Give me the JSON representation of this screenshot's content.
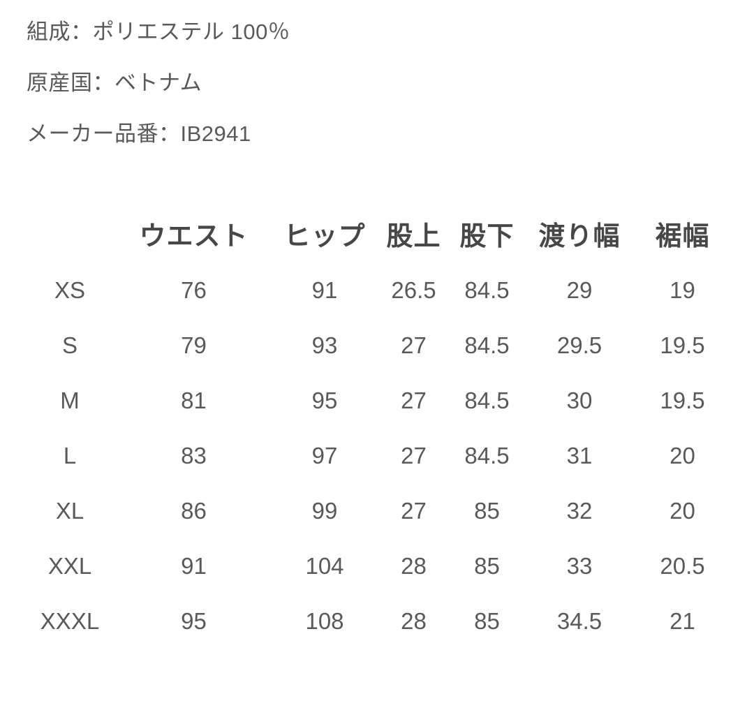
{
  "page": {
    "background": "#ffffff",
    "body_text_color": "#595959",
    "header_text_color": "#474747"
  },
  "product_info": {
    "composition": "組成：ポリエステル 100％",
    "country_of_origin": "原産国：ベトナム",
    "manufacturer_part_number": "メーカー品番：IB2941"
  },
  "size_table": {
    "column_headers": [
      "ウエスト",
      "ヒップ",
      "股上",
      "股下",
      "渡り幅",
      "裾幅"
    ],
    "rows": [
      {
        "size": "XS",
        "waist": "76",
        "hip": "91",
        "rise": "26.5",
        "inseam": "84.5",
        "thigh_width": "29",
        "hem_width": "19"
      },
      {
        "size": "S",
        "waist": "79",
        "hip": "93",
        "rise": "27",
        "inseam": "84.5",
        "thigh_width": "29.5",
        "hem_width": "19.5"
      },
      {
        "size": "M",
        "waist": "81",
        "hip": "95",
        "rise": "27",
        "inseam": "84.5",
        "thigh_width": "30",
        "hem_width": "19.5"
      },
      {
        "size": "L",
        "waist": "83",
        "hip": "97",
        "rise": "27",
        "inseam": "84.5",
        "thigh_width": "31",
        "hem_width": "20"
      },
      {
        "size": "XL",
        "waist": "86",
        "hip": "99",
        "rise": "27",
        "inseam": "85",
        "thigh_width": "32",
        "hem_width": "20"
      },
      {
        "size": "XXL",
        "waist": "91",
        "hip": "104",
        "rise": "28",
        "inseam": "85",
        "thigh_width": "33",
        "hem_width": "20.5"
      },
      {
        "size": "XXXL",
        "waist": "95",
        "hip": "108",
        "rise": "28",
        "inseam": "85",
        "thigh_width": "34.5",
        "hem_width": "21"
      }
    ]
  }
}
